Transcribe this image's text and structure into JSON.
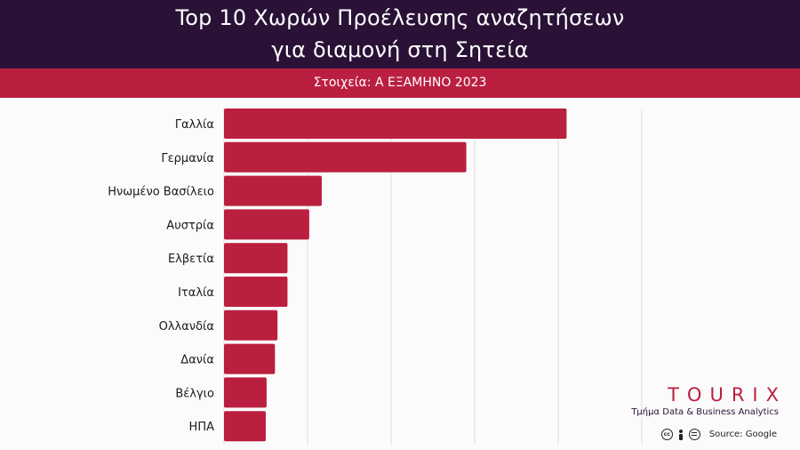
{
  "header": {
    "title_line1": "Top 10 Χωρών Προέλευσης αναζητήσεων",
    "title_line2": "για διαμονή στη Σητεία",
    "subtitle": "Στοιχεία: Α ΕΞΑΜΗΝΟ 2023"
  },
  "colors": {
    "header_bg": "#2a1236",
    "accent": "#bb1f40",
    "bar": "#bb1f40"
  },
  "chart_data": {
    "type": "bar",
    "orientation": "horizontal",
    "categories": [
      "Γαλλία",
      "Γερμανία",
      "Ηνωμένο Βασίλειο",
      "Αυστρία",
      "Ελβετία",
      "Ιταλία",
      "Ολλανδία",
      "Δανία",
      "Βέλγιο",
      "ΗΠΑ"
    ],
    "values": [
      41,
      29,
      11.7,
      10.2,
      7.6,
      7.6,
      6.4,
      6.1,
      5.1,
      5.0
    ],
    "xlim": [
      0,
      50
    ],
    "grid": true,
    "xticks_labeled": false
  },
  "brand": {
    "name": "TOURIX",
    "department": "Τμήμα Data & Business Analytics"
  },
  "source": {
    "text": "Source: Google",
    "license_icons": [
      "cc-icon",
      "person-icon",
      "nd-icon"
    ]
  }
}
